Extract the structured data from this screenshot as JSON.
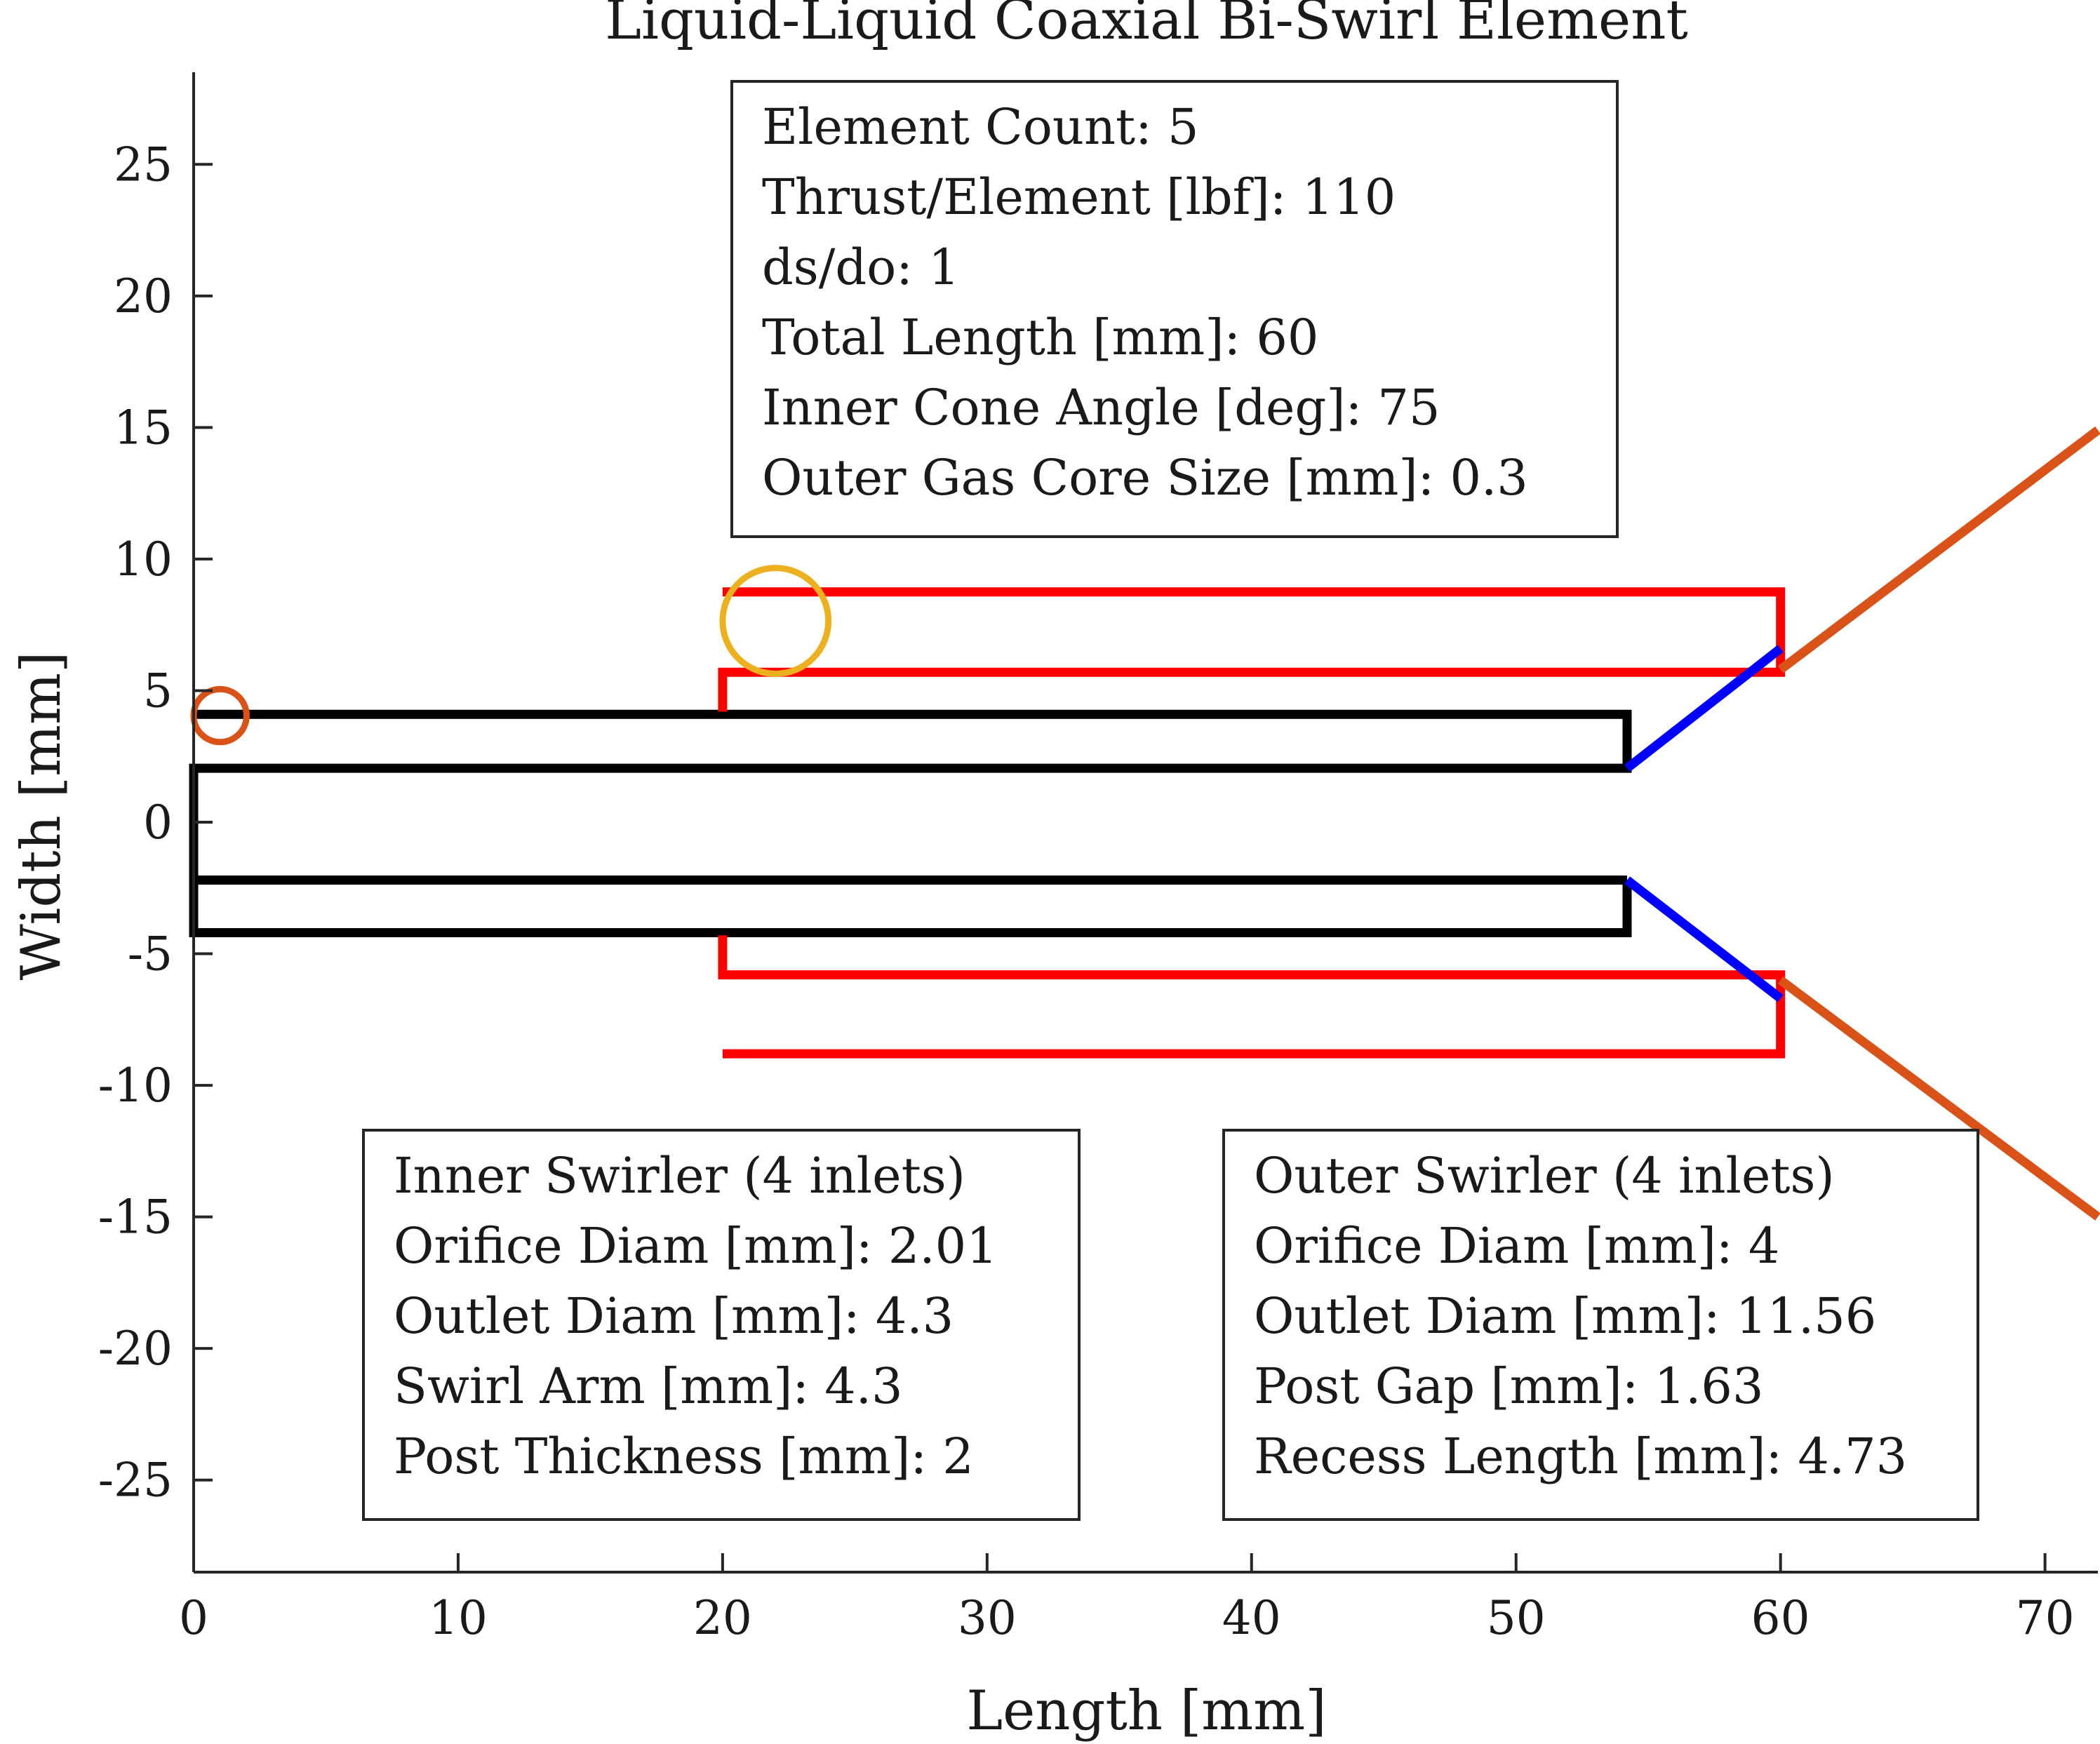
{
  "chart_data": {
    "type": "line",
    "title": "Liquid-Liquid Coaxial Bi-Swirl Element",
    "xlabel": "Length [mm]",
    "ylabel": "Width [mm]",
    "xlim": [
      0,
      72
    ],
    "ylim": [
      -28.5,
      28.5
    ],
    "xticks": [
      0,
      10,
      20,
      30,
      40,
      50,
      60,
      70
    ],
    "yticks": [
      -25,
      -20,
      -15,
      -10,
      -5,
      0,
      5,
      10,
      15,
      20,
      25
    ],
    "grid": false,
    "series": [
      {
        "color": "#000000",
        "x": [
          54.2,
          54.2,
          0,
          0,
          54.2,
          54.2,
          0
        ],
        "y": [
          -2.2,
          -4.2,
          -4.2,
          2.05,
          2.05,
          4.1,
          4.1
        ]
      },
      {
        "color": "#000000",
        "x": [
          0,
          54.2
        ],
        "y": [
          -2.2,
          -2.2
        ]
      },
      {
        "color": "#ff0000",
        "x": [
          20,
          20,
          60,
          60,
          20
        ],
        "y": [
          4.2,
          5.7,
          5.7,
          8.75,
          8.75
        ]
      },
      {
        "color": "#ff0000",
        "x": [
          20,
          20,
          60,
          60,
          20
        ],
        "y": [
          -4.3,
          -5.8,
          -5.8,
          -8.8,
          -8.8
        ]
      },
      {
        "color": "#0000ff",
        "x": [
          54.2,
          60
        ],
        "y": [
          2.05,
          6.6
        ]
      },
      {
        "color": "#0000ff",
        "x": [
          54.2,
          60
        ],
        "y": [
          -2.2,
          -6.7
        ]
      },
      {
        "color": "#d95319",
        "x": [
          60,
          72
        ],
        "y": [
          5.8,
          14.9
        ]
      },
      {
        "color": "#d95319",
        "x": [
          60,
          72
        ],
        "y": [
          -6.0,
          -15.0
        ]
      }
    ],
    "markers": [
      {
        "shape": "circle",
        "color": "#d95319",
        "cx": 1.0,
        "cy": 4.05,
        "r": 1.0
      },
      {
        "shape": "circle",
        "color": "#edb120",
        "cx": 22.0,
        "cy": 7.65,
        "r": 2.0
      }
    ],
    "annotations": {
      "top": [
        "Element Count: 5",
        "Thrust/Element [lbf]: 110",
        "ds/do: 1",
        "Total Length [mm]: 60",
        "Inner Cone Angle [deg]: 75",
        "Outer Gas Core Size [mm]: 0.3"
      ],
      "inner": [
        "Inner Swirler (4 inlets)",
        "Orifice Diam [mm]: 2.01",
        "Outlet Diam [mm]: 4.3",
        "Swirl Arm [mm]: 4.3",
        "Post Thickness [mm]: 2"
      ],
      "outer": [
        "Outer Swirler (4 inlets)",
        "Orifice Diam [mm]: 4",
        "Outlet Diam [mm]: 11.56",
        "Post Gap [mm]: 1.63",
        "Recess Length [mm]: 4.73"
      ]
    }
  }
}
